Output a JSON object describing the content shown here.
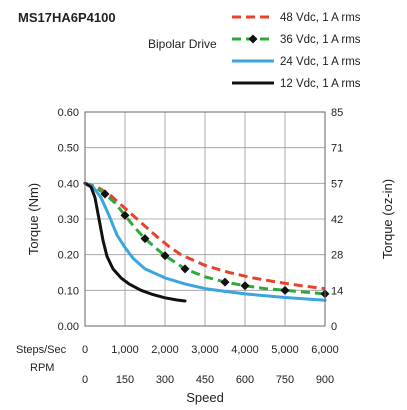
{
  "chart_data": {
    "type": "line",
    "title": "MS17HA6P4100",
    "subtitle": "Bipolar Drive",
    "xlabel": "Speed",
    "ylabel": "Torque (Nm)",
    "y2label": "Torque (oz-in)",
    "xlim": [
      0,
      6000
    ],
    "ylim": [
      0,
      0.6
    ],
    "grid": true,
    "legend_position": "top-right",
    "x_row_labels": {
      "steps": "Steps/Sec",
      "rpm": "RPM"
    },
    "x_ticks_steps": [
      "0",
      "1,000",
      "2,000",
      "3,000",
      "4,000",
      "5,000",
      "6,000"
    ],
    "x_ticks_rpm": [
      "0",
      "150",
      "300",
      "450",
      "600",
      "750",
      "900"
    ],
    "y_ticks": [
      "0.00",
      "0.10",
      "0.20",
      "0.30",
      "0.40",
      "0.50",
      "0.60"
    ],
    "y2_ticks": [
      "0",
      "14",
      "28",
      "42",
      "57",
      "71",
      "85"
    ],
    "series": [
      {
        "name": "48 Vdc, 1 A rms",
        "color": "#e8432a",
        "style": "dashed",
        "marker": "none",
        "x": [
          0,
          300,
          600,
          900,
          1200,
          1500,
          1800,
          2100,
          2400,
          3000,
          3600,
          4200,
          4800,
          5400,
          6000
        ],
        "y": [
          0.4,
          0.39,
          0.37,
          0.34,
          0.31,
          0.28,
          0.25,
          0.223,
          0.2,
          0.17,
          0.15,
          0.135,
          0.123,
          0.113,
          0.105
        ]
      },
      {
        "name": "36 Vdc, 1 A rms",
        "color": "#2eaa3c",
        "style": "dashed",
        "marker": "diamond",
        "x": [
          0,
          250,
          500,
          750,
          1000,
          1250,
          1500,
          1750,
          2000,
          2500,
          3000,
          3500,
          4000,
          4500,
          5000,
          5500,
          6000
        ],
        "y": [
          0.4,
          0.39,
          0.37,
          0.345,
          0.31,
          0.275,
          0.245,
          0.22,
          0.197,
          0.16,
          0.138,
          0.123,
          0.113,
          0.105,
          0.1,
          0.095,
          0.09
        ]
      },
      {
        "name": "24 Vdc, 1 A rms",
        "color": "#3aa6e0",
        "style": "solid",
        "marker": "none",
        "x": [
          0,
          200,
          400,
          600,
          800,
          1000,
          1200,
          1500,
          2000,
          2500,
          3000,
          3500,
          4000,
          5000,
          6000
        ],
        "y": [
          0.4,
          0.39,
          0.36,
          0.31,
          0.255,
          0.22,
          0.19,
          0.16,
          0.135,
          0.118,
          0.105,
          0.097,
          0.09,
          0.08,
          0.072
        ]
      },
      {
        "name": "12 Vdc, 1 A rms",
        "color": "#111111",
        "style": "solid",
        "marker": "none",
        "x": [
          0,
          150,
          250,
          350,
          450,
          550,
          700,
          900,
          1100,
          1400,
          1700,
          2000,
          2300,
          2500
        ],
        "y": [
          0.4,
          0.39,
          0.36,
          0.3,
          0.24,
          0.195,
          0.16,
          0.135,
          0.118,
          0.1,
          0.088,
          0.079,
          0.073,
          0.07
        ]
      }
    ],
    "markers_36v": {
      "x": [
        500,
        1000,
        1500,
        2000,
        2500,
        3500,
        4000,
        5000,
        6000
      ],
      "y": [
        0.37,
        0.31,
        0.245,
        0.197,
        0.16,
        0.123,
        0.113,
        0.1,
        0.09
      ]
    }
  }
}
